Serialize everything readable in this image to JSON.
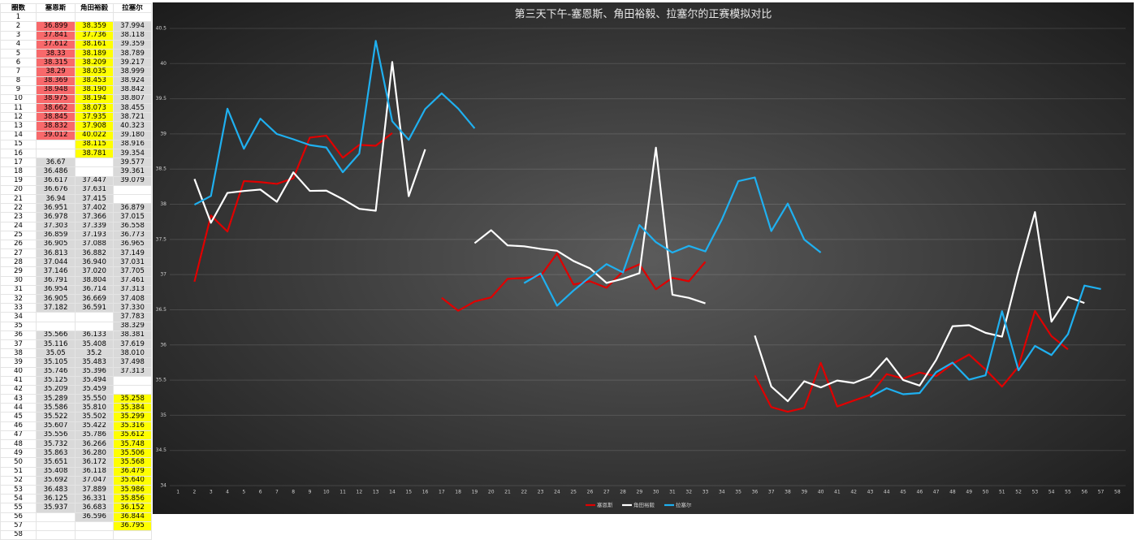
{
  "table": {
    "headers": [
      "圈数",
      "塞恩斯",
      "角田裕毅",
      "拉塞尔"
    ],
    "rows": [
      [
        "1",
        null,
        null,
        null
      ],
      [
        "2",
        "36.899",
        "38.359",
        "37.994"
      ],
      [
        "3",
        "37.841",
        "37.736",
        "38.118"
      ],
      [
        "4",
        "37.612",
        "38.161",
        "39.359"
      ],
      [
        "5",
        "38.33",
        "38.189",
        "38.789"
      ],
      [
        "6",
        "38.315",
        "38.209",
        "39.217"
      ],
      [
        "7",
        "38.29",
        "38.035",
        "38.999"
      ],
      [
        "8",
        "38.369",
        "38.453",
        "38.924"
      ],
      [
        "9",
        "38.948",
        "38.190",
        "38.842"
      ],
      [
        "10",
        "38.975",
        "38.194",
        "38.807"
      ],
      [
        "11",
        "38.662",
        "38.073",
        "38.455"
      ],
      [
        "12",
        "38.845",
        "37.935",
        "38.721"
      ],
      [
        "13",
        "38.832",
        "37.908",
        "40.323"
      ],
      [
        "14",
        "39.012",
        "40.022",
        "39.180"
      ],
      [
        "15",
        null,
        "38.115",
        "38.916"
      ],
      [
        "16",
        null,
        "38.781",
        "39.354"
      ],
      [
        "17",
        "36.67",
        null,
        "39.577"
      ],
      [
        "18",
        "36.486",
        null,
        "39.361"
      ],
      [
        "19",
        "36.617",
        "37.447",
        "39.079"
      ],
      [
        "20",
        "36.676",
        "37.631",
        null
      ],
      [
        "21",
        "36.94",
        "37.415",
        null
      ],
      [
        "22",
        "36.951",
        "37.402",
        "36.879"
      ],
      [
        "23",
        "36.978",
        "37.366",
        "37.015"
      ],
      [
        "24",
        "37.303",
        "37.339",
        "36.558"
      ],
      [
        "25",
        "36.859",
        "37.193",
        "36.773"
      ],
      [
        "26",
        "36.905",
        "37.088",
        "36.965"
      ],
      [
        "27",
        "36.813",
        "36.882",
        "37.149"
      ],
      [
        "28",
        "37.044",
        "36.940",
        "37.031"
      ],
      [
        "29",
        "37.146",
        "37.020",
        "37.705"
      ],
      [
        "30",
        "36.791",
        "38.804",
        "37.461"
      ],
      [
        "31",
        "36.954",
        "36.714",
        "37.313"
      ],
      [
        "32",
        "36.905",
        "36.669",
        "37.408"
      ],
      [
        "33",
        "37.182",
        "36.591",
        "37.330"
      ],
      [
        "34",
        null,
        null,
        "37.783"
      ],
      [
        "35",
        null,
        null,
        "38.329"
      ],
      [
        "36",
        "35.566",
        "36.133",
        "38.381"
      ],
      [
        "37",
        "35.116",
        "35.408",
        "37.619"
      ],
      [
        "38",
        "35.05",
        "35.2",
        "38.010"
      ],
      [
        "39",
        "35.105",
        "35.483",
        "37.498"
      ],
      [
        "40",
        "35.746",
        "35.396",
        "37.313"
      ],
      [
        "41",
        "35.125",
        "35.494",
        null
      ],
      [
        "42",
        "35.209",
        "35.459",
        null
      ],
      [
        "43",
        "35.289",
        "35.550",
        "35.258"
      ],
      [
        "44",
        "35.586",
        "35.810",
        "35.384"
      ],
      [
        "45",
        "35.522",
        "35.502",
        "35.299"
      ],
      [
        "46",
        "35.607",
        "35.422",
        "35.316"
      ],
      [
        "47",
        "35.556",
        "35.786",
        "35.612"
      ],
      [
        "48",
        "35.732",
        "36.266",
        "35.748"
      ],
      [
        "49",
        "35.863",
        "36.280",
        "35.506"
      ],
      [
        "50",
        "35.651",
        "36.172",
        "35.568"
      ],
      [
        "51",
        "35.408",
        "36.118",
        "36.479"
      ],
      [
        "52",
        "35.692",
        "37.047",
        "35.640"
      ],
      [
        "53",
        "36.483",
        "37.889",
        "35.986"
      ],
      [
        "54",
        "36.125",
        "36.331",
        "35.856"
      ],
      [
        "55",
        "35.937",
        "36.683",
        "36.152"
      ],
      [
        "56",
        null,
        "36.596",
        "36.844"
      ],
      [
        "57",
        null,
        null,
        "36.795"
      ],
      [
        "58",
        null,
        null,
        null
      ]
    ]
  },
  "chart_data": {
    "type": "line",
    "title": "第三天下午-塞恩斯、角田裕毅、拉塞尔的正赛模拟对比",
    "categories": [
      "1",
      "2",
      "3",
      "4",
      "5",
      "6",
      "7",
      "8",
      "9",
      "10",
      "11",
      "12",
      "13",
      "14",
      "15",
      "16",
      "17",
      "18",
      "19",
      "20",
      "21",
      "22",
      "23",
      "24",
      "25",
      "26",
      "27",
      "28",
      "29",
      "30",
      "31",
      "32",
      "33",
      "34",
      "35",
      "36",
      "37",
      "38",
      "39",
      "40",
      "41",
      "42",
      "43",
      "44",
      "45",
      "46",
      "47",
      "48",
      "49",
      "50",
      "51",
      "52",
      "53",
      "54",
      "55",
      "56",
      "57",
      "58"
    ],
    "ylim": [
      34,
      40.5
    ],
    "yticks": [
      34,
      34.5,
      35,
      35.5,
      36,
      36.5,
      37,
      37.5,
      38,
      38.5,
      39,
      39.5,
      40,
      40.5
    ],
    "grid": true,
    "legend": "bottom",
    "series": [
      {
        "name": "塞恩斯",
        "color": "#e00000",
        "values": [
          null,
          36.899,
          37.841,
          37.612,
          38.33,
          38.315,
          38.29,
          38.369,
          38.948,
          38.975,
          38.662,
          38.845,
          38.832,
          39.012,
          null,
          null,
          36.67,
          36.486,
          36.617,
          36.676,
          36.94,
          36.951,
          36.978,
          37.303,
          36.859,
          36.905,
          36.813,
          37.044,
          37.146,
          36.791,
          36.954,
          36.905,
          37.182,
          null,
          null,
          35.566,
          35.116,
          35.05,
          35.105,
          35.746,
          35.125,
          35.209,
          35.289,
          35.586,
          35.522,
          35.607,
          35.556,
          35.732,
          35.863,
          35.651,
          35.408,
          35.692,
          36.483,
          36.125,
          35.937,
          null,
          null,
          null
        ]
      },
      {
        "name": "角田裕毅",
        "color": "#ffffff",
        "values": [
          null,
          38.359,
          37.736,
          38.161,
          38.189,
          38.209,
          38.035,
          38.453,
          38.19,
          38.194,
          38.073,
          37.935,
          37.908,
          40.022,
          38.115,
          38.781,
          null,
          null,
          37.447,
          37.631,
          37.415,
          37.402,
          37.366,
          37.339,
          37.193,
          37.088,
          36.882,
          36.94,
          37.02,
          38.804,
          36.714,
          36.669,
          36.591,
          null,
          null,
          36.133,
          35.408,
          35.2,
          35.483,
          35.396,
          35.494,
          35.459,
          35.55,
          35.81,
          35.502,
          35.422,
          35.786,
          36.266,
          36.28,
          36.172,
          36.118,
          37.047,
          37.889,
          36.331,
          36.683,
          36.596,
          null,
          null
        ]
      },
      {
        "name": "拉塞尔",
        "color": "#1fb0f0",
        "values": [
          null,
          37.994,
          38.118,
          39.359,
          38.789,
          39.217,
          38.999,
          38.924,
          38.842,
          38.807,
          38.455,
          38.721,
          40.323,
          39.18,
          38.916,
          39.354,
          39.577,
          39.361,
          39.079,
          null,
          null,
          36.879,
          37.015,
          36.558,
          36.773,
          36.965,
          37.149,
          37.031,
          37.705,
          37.461,
          37.313,
          37.408,
          37.33,
          37.783,
          38.329,
          38.381,
          37.619,
          38.01,
          37.498,
          37.313,
          null,
          null,
          35.258,
          35.384,
          35.299,
          35.316,
          35.612,
          35.748,
          35.506,
          35.568,
          36.479,
          35.64,
          35.986,
          35.856,
          36.152,
          36.844,
          36.795,
          null
        ]
      }
    ]
  }
}
